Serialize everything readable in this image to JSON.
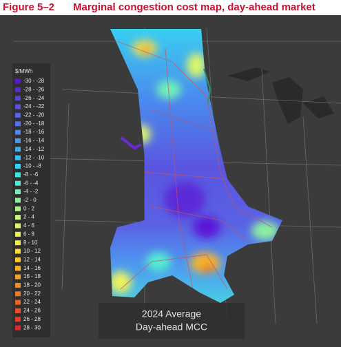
{
  "header": {
    "figure": "Figure 5–2",
    "title": "Marginal congestion cost map, day-ahead market"
  },
  "legend": {
    "title": "$/MWh",
    "items": [
      {
        "label": "-30 - -28",
        "color": "#5b17d8"
      },
      {
        "label": "-28 - -26",
        "color": "#5a2ad9"
      },
      {
        "label": "-26 - -24",
        "color": "#5b3fdc"
      },
      {
        "label": "-24 - -22",
        "color": "#5d50e0"
      },
      {
        "label": "-22 - -20",
        "color": "#5a62e4"
      },
      {
        "label": "-20 - -18",
        "color": "#5473e8"
      },
      {
        "label": "-18 - -16",
        "color": "#4d86ec"
      },
      {
        "label": "-16 - -14",
        "color": "#4698f0"
      },
      {
        "label": "-14 - -12",
        "color": "#3dacf2"
      },
      {
        "label": "-12 - -10",
        "color": "#36c0f3"
      },
      {
        "label": "-10 - -8",
        "color": "#30d3f3"
      },
      {
        "label": "-8 - -6",
        "color": "#38e6e8"
      },
      {
        "label": "-6 - -4",
        "color": "#52edd0"
      },
      {
        "label": "-4 - -2",
        "color": "#6ef0b8"
      },
      {
        "label": "-2 - 0",
        "color": "#8cf0a0"
      },
      {
        "label": "0 - 2",
        "color": "#aef48a"
      },
      {
        "label": "2 - 4",
        "color": "#c8f47a"
      },
      {
        "label": "4 - 6",
        "color": "#dcf46a"
      },
      {
        "label": "6 - 8",
        "color": "#ecf25a"
      },
      {
        "label": "8 - 10",
        "color": "#f6ea48"
      },
      {
        "label": "10 - 12",
        "color": "#f9da3a"
      },
      {
        "label": "12 - 14",
        "color": "#f8c832"
      },
      {
        "label": "14 - 16",
        "color": "#f6b42c"
      },
      {
        "label": "16 - 18",
        "color": "#f4a028"
      },
      {
        "label": "18 - 20",
        "color": "#f28c26"
      },
      {
        "label": "20 - 22",
        "color": "#ef7824"
      },
      {
        "label": "22 - 24",
        "color": "#ec6424"
      },
      {
        "label": "24 - 26",
        "color": "#e85026"
      },
      {
        "label": "26 - 28",
        "color": "#e43c28"
      },
      {
        "label": "28 - 30",
        "color": "#e0282a"
      }
    ]
  },
  "caption": [
    "2024 Average",
    "Day-ahead MCC"
  ]
}
